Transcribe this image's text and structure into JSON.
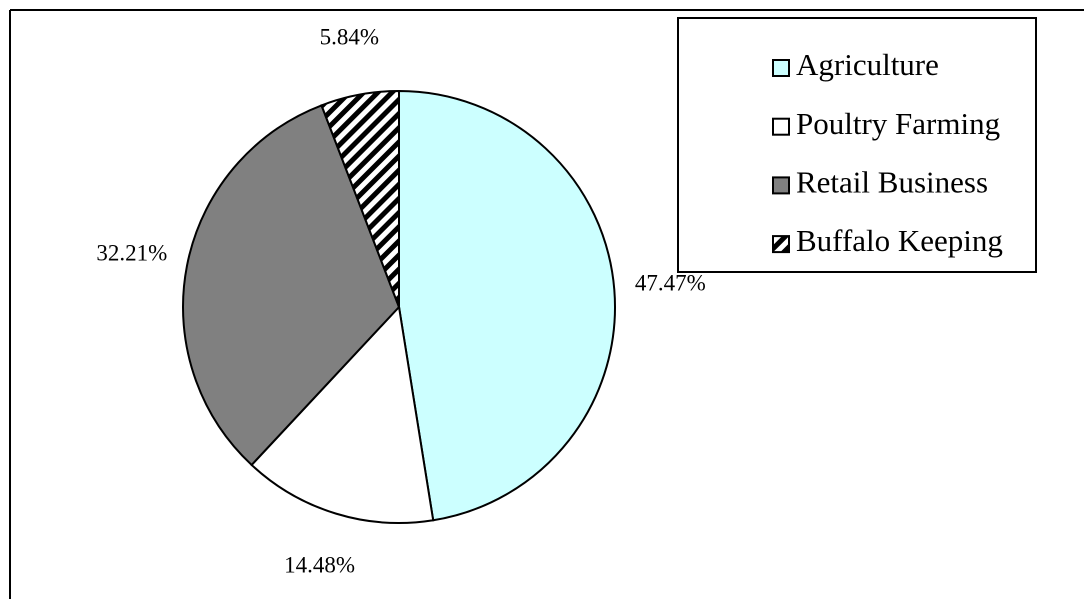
{
  "chart_data": {
    "type": "pie",
    "categories": [
      "Agriculture",
      "Poultry Farming",
      "Retail Business",
      "Buffalo Keeping"
    ],
    "values": [
      47.47,
      14.48,
      32.21,
      5.84
    ],
    "value_labels": [
      "47.47%",
      "14.48%",
      "32.21%",
      "5.84%"
    ],
    "colors": [
      "#ccffff",
      "#ffffff",
      "#808080",
      "#000000"
    ],
    "hatch": [
      false,
      false,
      false,
      true
    ],
    "legend": "top-right"
  }
}
